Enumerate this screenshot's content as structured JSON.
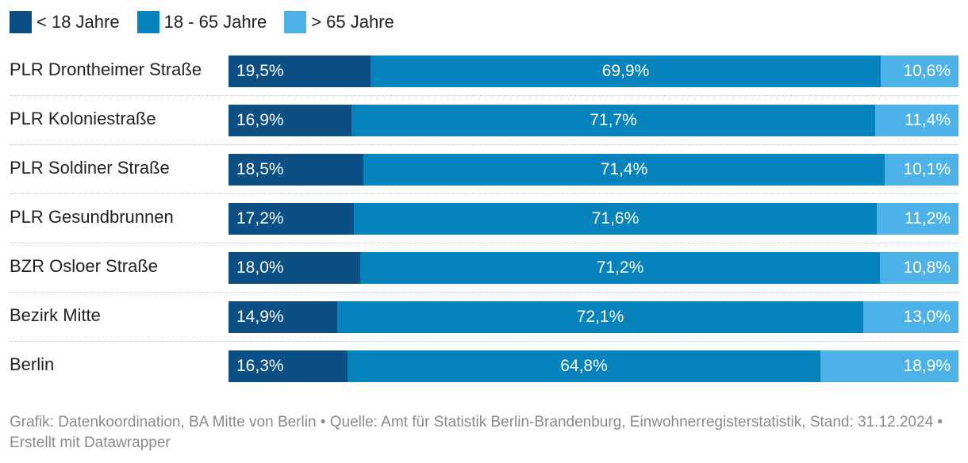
{
  "legend": [
    {
      "label": "< 18 Jahre",
      "color": "#0b4f84"
    },
    {
      "label": "18 - 65 Jahre",
      "color": "#0683bc"
    },
    {
      "label": "> 65 Jahre",
      "color": "#4cb2e8"
    }
  ],
  "chart_data": {
    "type": "bar",
    "orientation": "horizontal",
    "stacked": true,
    "normalized": true,
    "categories": [
      "PLR Drontheimer Straße",
      "PLR Koloniestraße",
      "PLR Soldiner Straße",
      "PLR Gesundbrunnen",
      "BZR Osloer Straße",
      "Bezirk Mitte",
      "Berlin"
    ],
    "series": [
      {
        "name": "< 18 Jahre",
        "color": "#0b4f84",
        "values": [
          19.5,
          16.9,
          18.5,
          17.2,
          18.0,
          14.9,
          16.3
        ],
        "labels": [
          "19,5%",
          "16,9%",
          "18,5%",
          "17,2%",
          "18,0%",
          "14,9%",
          "16,3%"
        ]
      },
      {
        "name": "18 - 65 Jahre",
        "color": "#0683bc",
        "values": [
          69.9,
          71.7,
          71.4,
          71.6,
          71.2,
          72.1,
          64.8
        ],
        "labels": [
          "69,9%",
          "71,7%",
          "71,4%",
          "71,6%",
          "71,2%",
          "72,1%",
          "64,8%"
        ]
      },
      {
        "name": "> 65 Jahre",
        "color": "#4cb2e8",
        "values": [
          10.6,
          11.4,
          10.1,
          11.2,
          10.8,
          13.0,
          18.9
        ],
        "labels": [
          "10,6%",
          "11,4%",
          "10,1%",
          "11,2%",
          "10,8%",
          "13,0%",
          "18,9%"
        ]
      }
    ],
    "legend_position": "top-left",
    "grid": false
  },
  "footer": {
    "text": "Grafik: Datenkoordination, BA Mitte von Berlin • Quelle: Amt für Statistik Berlin-Brandenburg, Einwohnerregisterstatistik, Stand: 31.12.2024 • Erstellt mit Datawrapper"
  }
}
